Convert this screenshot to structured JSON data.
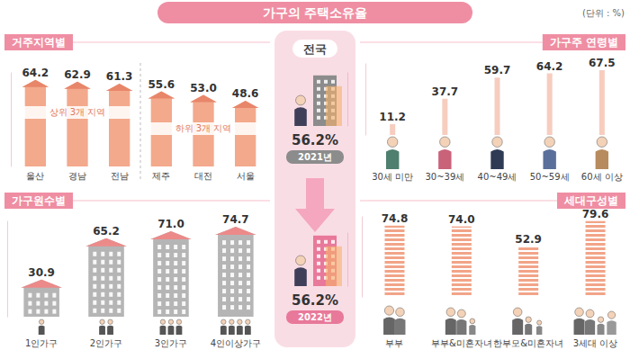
{
  "title": "가구의 주택소유율",
  "subtitle": "(단위 : %)",
  "chart_data": [
    {
      "type": "bar",
      "title": "거주지역별",
      "categories": [
        "울산",
        "경남",
        "전남",
        "제주",
        "대전",
        "서울"
      ],
      "values": [
        64.2,
        62.9,
        61.3,
        55.6,
        53.0,
        48.6
      ],
      "value_labels": [
        "64.2",
        "62.9",
        "61.3",
        "55.6",
        "53.0",
        "48.6"
      ],
      "annotations": [
        "상위 3개 지역",
        "하위 3개 지역"
      ],
      "ylim": [
        0,
        70
      ],
      "tick_labels": false,
      "data_labels": true,
      "color": "#f3a98c"
    },
    {
      "type": "bar",
      "title": "전국",
      "categories": [
        "2021년",
        "2022년"
      ],
      "values": [
        56.2,
        56.2
      ],
      "value_labels": [
        "56.2%",
        "56.2%"
      ],
      "ylim": [
        0,
        60
      ],
      "tick_labels": false,
      "data_labels": true,
      "colors": [
        "#8c8c8c",
        "#e8799a"
      ]
    },
    {
      "type": "bar",
      "title": "가구주 연령별",
      "categories": [
        "30세 미만",
        "30~39세",
        "40~49세",
        "50~59세",
        "60세 이상"
      ],
      "values": [
        11.2,
        37.7,
        59.7,
        64.2,
        67.5
      ],
      "value_labels": [
        "11.2",
        "37.7",
        "59.7",
        "64.2",
        "67.5"
      ],
      "ylim": [
        0,
        75
      ],
      "tick_labels": false,
      "data_labels": true,
      "color": "#f6cdbf"
    },
    {
      "type": "bar",
      "title": "가구원수별",
      "categories": [
        "1인가구",
        "2인가구",
        "3인가구",
        "4인이상가구"
      ],
      "values": [
        30.9,
        65.2,
        71.0,
        74.7
      ],
      "value_labels": [
        "30.9",
        "65.2",
        "71.0",
        "74.7"
      ],
      "ylim": [
        0,
        80
      ],
      "tick_labels": false,
      "data_labels": true,
      "color": "#b5b5b5"
    },
    {
      "type": "bar",
      "title": "세대구성별",
      "categories": [
        "부부",
        "부부&미혼자녀",
        "한부모&미혼자녀",
        "3세대 이상"
      ],
      "values": [
        74.8,
        74.0,
        52.9,
        79.6
      ],
      "value_labels": [
        "74.8",
        "74.0",
        "52.9",
        "79.6"
      ],
      "ylim": [
        0,
        85
      ],
      "tick_labels": false,
      "data_labels": true,
      "color": "#f2a488"
    }
  ]
}
